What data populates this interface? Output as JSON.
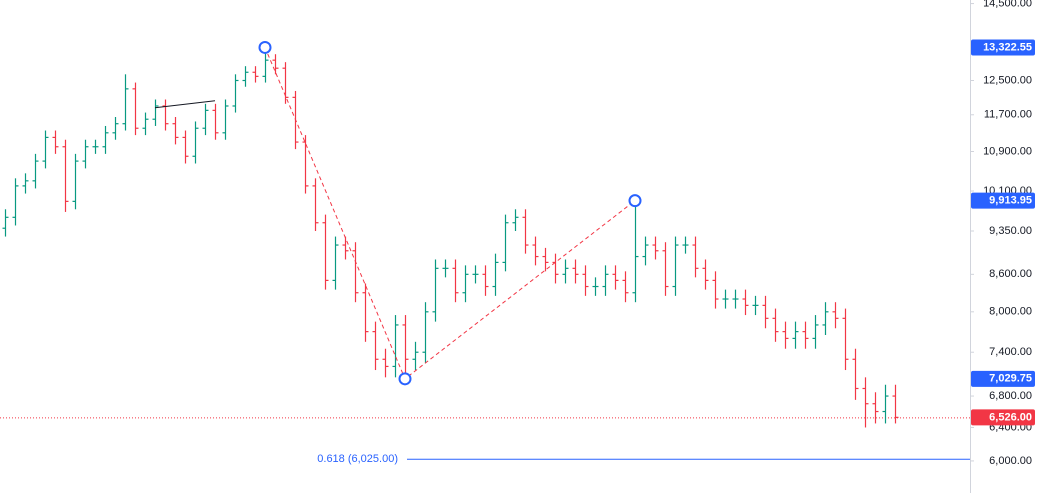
{
  "chart_data": {
    "type": "ohlc",
    "log_scale": true,
    "ylim": [
      5640,
      14600
    ],
    "yticks": [
      {
        "value": 14500,
        "label": "14,500.00"
      },
      {
        "value": 12500,
        "label": "12,500.00"
      },
      {
        "value": 11700,
        "label": "11,700.00"
      },
      {
        "value": 10900,
        "label": "10,900.00"
      },
      {
        "value": 10100,
        "label": "10,100.00"
      },
      {
        "value": 9350,
        "label": "9,350.00"
      },
      {
        "value": 8600,
        "label": "8,600.00"
      },
      {
        "value": 8000,
        "label": "8,000.00"
      },
      {
        "value": 7400,
        "label": "7,400.00"
      },
      {
        "value": 6800,
        "label": "6,800.00"
      },
      {
        "value": 6400,
        "label": "6,400.00"
      },
      {
        "value": 6000,
        "label": "6,000.00"
      }
    ],
    "up_color": "#089981",
    "down_color": "#f23645",
    "open": [
      9400,
      9600,
      10200,
      10300,
      10700,
      11200,
      11000,
      9900,
      10700,
      11000,
      11000,
      11300,
      11500,
      12300,
      11400,
      11600,
      11900,
      11500,
      11200,
      10800,
      11400,
      11800,
      11300,
      11900,
      12500,
      12700,
      12600,
      13000,
      12800,
      12100,
      11100,
      10200,
      9500,
      8500,
      9100,
      9000,
      8300,
      7700,
      7300,
      7200,
      7800,
      7300,
      7400,
      8000,
      8700,
      8700,
      8300,
      8600,
      8600,
      8400,
      8800,
      9500,
      9600,
      9100,
      8900,
      8800,
      8600,
      8700,
      8600,
      8400,
      8400,
      8600,
      8500,
      8300,
      8900,
      9100,
      9000,
      8400,
      9100,
      9100,
      8700,
      8500,
      8200,
      8200,
      8200,
      8100,
      8100,
      7900,
      7700,
      7600,
      7700,
      7600,
      7800,
      8000,
      7900,
      7300,
      6900,
      6700,
      6600,
      6800
    ],
    "high": [
      9750,
      10350,
      10450,
      10850,
      11350,
      11350,
      11150,
      10850,
      11150,
      11150,
      11450,
      11650,
      12650,
      12450,
      11750,
      12050,
      12050,
      11650,
      11350,
      11550,
      11950,
      11950,
      12050,
      12650,
      12850,
      12850,
      13322.55,
      13150,
      12950,
      12250,
      11250,
      10350,
      9650,
      9250,
      9250,
      9150,
      8450,
      7850,
      7450,
      7950,
      7950,
      7550,
      8150,
      8850,
      8850,
      8850,
      8750,
      8750,
      8750,
      8950,
      9650,
      9750,
      9750,
      9250,
      9050,
      8950,
      8850,
      8850,
      8750,
      8550,
      8750,
      8750,
      8650,
      9913.95,
      9250,
      9250,
      9150,
      9250,
      9250,
      9250,
      8850,
      8650,
      8350,
      8350,
      8350,
      8250,
      8250,
      8050,
      7850,
      7850,
      7850,
      7950,
      8150,
      8150,
      8050,
      7450,
      7050,
      6850,
      6950,
      6950
    ],
    "low": [
      9250,
      9450,
      10050,
      10150,
      10550,
      10850,
      9700,
      9750,
      10550,
      10850,
      10850,
      11150,
      11350,
      11250,
      11250,
      11450,
      11350,
      11050,
      10650,
      10650,
      11250,
      11150,
      11150,
      11750,
      12350,
      12450,
      12450,
      12650,
      11950,
      10950,
      10050,
      9350,
      8350,
      8350,
      8850,
      8150,
      7550,
      7150,
      7050,
      7050,
      7029.75,
      7150,
      7250,
      7850,
      8550,
      8150,
      8150,
      8450,
      8250,
      8250,
      8650,
      9350,
      8950,
      8750,
      8650,
      8450,
      8450,
      8450,
      8250,
      8250,
      8250,
      8350,
      8150,
      8150,
      8750,
      8850,
      8250,
      8250,
      8950,
      8550,
      8350,
      8050,
      8050,
      8050,
      7950,
      7950,
      7750,
      7550,
      7450,
      7450,
      7450,
      7450,
      7650,
      7750,
      7150,
      6750,
      6400,
      6450,
      6450,
      6450
    ],
    "close": [
      9600,
      10200,
      10300,
      10700,
      11200,
      11000,
      9900,
      10700,
      11000,
      11000,
      11300,
      11500,
      12300,
      11400,
      11600,
      11900,
      11500,
      11200,
      10800,
      11400,
      11800,
      11300,
      11900,
      12500,
      12700,
      12600,
      13000,
      12800,
      12100,
      11100,
      10200,
      9500,
      8500,
      9100,
      9000,
      8300,
      7700,
      7300,
      7200,
      7800,
      7300,
      7400,
      8000,
      8700,
      8700,
      8300,
      8600,
      8600,
      8400,
      8800,
      9500,
      9600,
      9100,
      8900,
      8800,
      8600,
      8700,
      8600,
      8400,
      8400,
      8600,
      8500,
      8300,
      8900,
      9100,
      9000,
      8400,
      9100,
      9100,
      8700,
      8500,
      8200,
      8200,
      8200,
      8100,
      8100,
      7900,
      7700,
      7600,
      7700,
      7600,
      7800,
      8000,
      7900,
      7300,
      6900,
      6700,
      6600,
      6800,
      6526
    ],
    "pattern": {
      "color": "#f23645",
      "point_color": "#2962ff",
      "bars": [
        26,
        40,
        63
      ],
      "values": [
        13322.55,
        7029.75,
        9913.95
      ]
    },
    "trend_line": {
      "color": "#131722",
      "bars": [
        15,
        21
      ],
      "values": [
        11860,
        12020
      ]
    },
    "fib_level": {
      "value": 6025,
      "label": "0.618 (6,025.00)",
      "color": "#2962ff"
    },
    "price_labels": [
      {
        "value": 13322.55,
        "label": "13,322.55",
        "color": "#2962ff"
      },
      {
        "value": 9913.95,
        "label": "9,913.95",
        "color": "#2962ff"
      },
      {
        "value": 7029.75,
        "label": "7,029.75",
        "color": "#2962ff"
      },
      {
        "value": 6526,
        "label": "6,526.00",
        "color": "#f23645"
      }
    ]
  }
}
